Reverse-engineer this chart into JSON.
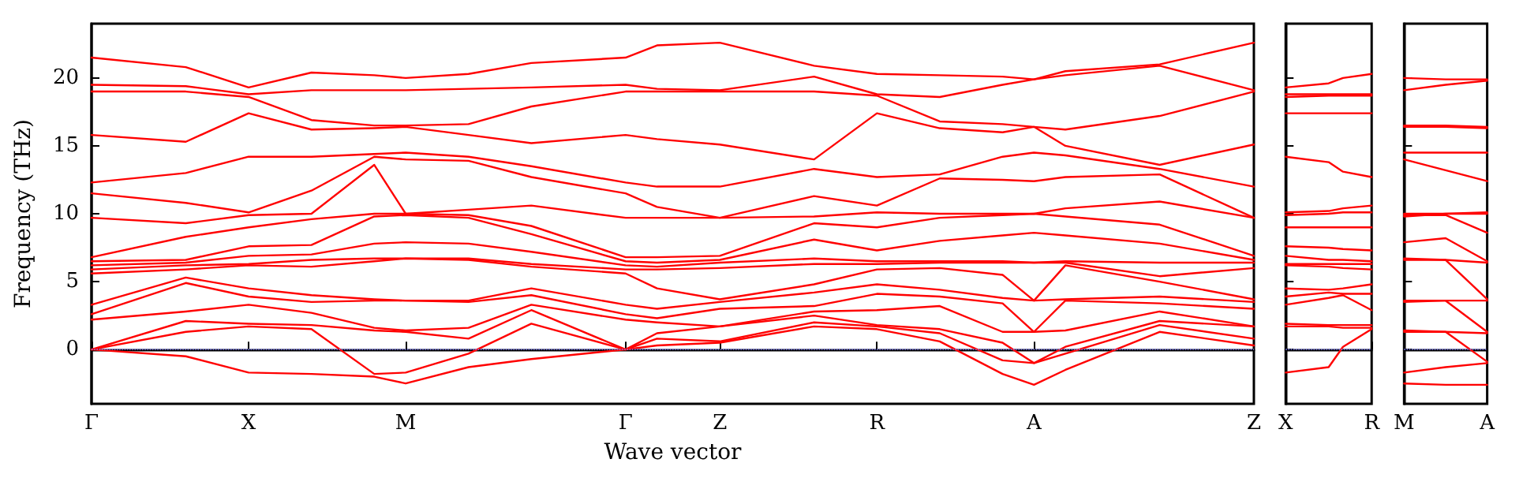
{
  "chart_data": [
    {
      "type": "line",
      "xlabel": "Wave vector",
      "ylabel": "Frequency (THz)",
      "marker": "none",
      "line_style": "solid",
      "categories": [
        "Γ",
        null,
        null,
        null,
        null,
        "X",
        null,
        null,
        null,
        null,
        "M",
        null,
        null,
        null,
        null,
        null,
        null,
        "Γ",
        null,
        null,
        "Z",
        null,
        null,
        null,
        null,
        "R",
        null,
        null,
        null,
        null,
        "A",
        null,
        null,
        null,
        null,
        null,
        null,
        "Z"
      ],
      "ylim": [
        -4,
        24
      ],
      "yticks": [
        0,
        5,
        10,
        15,
        20
      ],
      "ref_lines": [
        {
          "axis": "y",
          "value": 0,
          "color": "#8080ff",
          "line_style": "dotted"
        }
      ],
      "series": [
        {
          "color": "#ff0000",
          "values": [
            0,
            null,
            null,
            -0.5,
            null,
            -1.7,
            null,
            -1.8,
            null,
            -2.0,
            -2.5,
            null,
            -1.3,
            null,
            -0.7,
            null,
            null,
            0,
            0.3,
            null,
            0.5,
            null,
            null,
            1.7,
            null,
            1.5,
            null,
            0.6,
            null,
            -1.8,
            -2.6,
            -1.5,
            null,
            null,
            1.3,
            null,
            null,
            0.3
          ]
        },
        {
          "color": "#ff0000",
          "values": [
            0,
            null,
            null,
            1.3,
            null,
            1.7,
            null,
            1.5,
            null,
            -1.8,
            -1.7,
            null,
            -0.3,
            null,
            1.9,
            null,
            null,
            0,
            0.8,
            null,
            0.6,
            null,
            null,
            2.0,
            null,
            1.7,
            null,
            1.2,
            null,
            -0.8,
            -1.0,
            -0.3,
            null,
            null,
            1.8,
            null,
            null,
            0.8
          ]
        },
        {
          "color": "#ff0000",
          "values": [
            0,
            null,
            null,
            2.1,
            null,
            1.9,
            null,
            1.8,
            null,
            1.4,
            1.3,
            null,
            0.8,
            null,
            2.9,
            null,
            null,
            0,
            1.2,
            null,
            1.7,
            null,
            null,
            2.5,
            null,
            1.8,
            null,
            1.5,
            null,
            0.5,
            -1.0,
            0.2,
            null,
            null,
            2.1,
            null,
            null,
            1.7
          ]
        },
        {
          "color": "#ff0000",
          "values": [
            2.2,
            null,
            null,
            2.8,
            null,
            3.3,
            null,
            2.7,
            null,
            1.6,
            1.4,
            null,
            1.6,
            null,
            3.3,
            null,
            null,
            2.2,
            2.0,
            null,
            1.7,
            null,
            null,
            2.8,
            null,
            2.9,
            null,
            3.2,
            null,
            1.3,
            1.3,
            1.4,
            null,
            null,
            2.8,
            null,
            null,
            1.7
          ]
        },
        {
          "color": "#ff0000",
          "values": [
            2.6,
            null,
            null,
            4.9,
            null,
            3.9,
            null,
            3.5,
            null,
            3.6,
            3.6,
            null,
            3.5,
            null,
            4.0,
            null,
            null,
            2.6,
            2.3,
            null,
            3.0,
            null,
            null,
            3.2,
            null,
            4.1,
            null,
            3.9,
            null,
            3.4,
            1.3,
            3.6,
            null,
            null,
            3.4,
            null,
            null,
            3.0
          ]
        },
        {
          "color": "#ff0000",
          "values": [
            3.3,
            null,
            null,
            5.3,
            null,
            4.5,
            null,
            4.0,
            null,
            3.7,
            3.6,
            null,
            3.6,
            null,
            4.5,
            null,
            null,
            3.3,
            3.0,
            null,
            3.5,
            null,
            null,
            4.2,
            null,
            4.8,
            null,
            4.4,
            null,
            3.8,
            3.6,
            3.7,
            null,
            null,
            3.9,
            null,
            null,
            3.5
          ]
        },
        {
          "color": "#ff0000",
          "values": [
            5.6,
            null,
            null,
            5.9,
            null,
            6.2,
            null,
            6.1,
            null,
            6.5,
            6.7,
            null,
            6.6,
            null,
            6.1,
            null,
            null,
            5.6,
            4.5,
            null,
            3.7,
            null,
            null,
            4.8,
            null,
            5.9,
            null,
            6.0,
            null,
            5.5,
            3.6,
            6.2,
            null,
            null,
            5.0,
            null,
            null,
            3.7
          ]
        },
        {
          "color": "#ff0000",
          "values": [
            5.9,
            null,
            null,
            6.2,
            null,
            6.3,
            null,
            6.6,
            null,
            6.7,
            6.7,
            null,
            6.7,
            null,
            6.3,
            null,
            null,
            5.9,
            5.9,
            null,
            6.0,
            null,
            null,
            6.3,
            null,
            6.3,
            null,
            6.4,
            null,
            6.4,
            6.4,
            6.4,
            null,
            null,
            5.4,
            null,
            null,
            6.0
          ]
        },
        {
          "color": "#ff0000",
          "values": [
            6.2,
            null,
            null,
            6.4,
            null,
            6.9,
            null,
            7.0,
            null,
            7.8,
            7.9,
            null,
            7.8,
            null,
            7.2,
            null,
            null,
            6.2,
            6.1,
            null,
            6.4,
            null,
            null,
            6.7,
            null,
            6.5,
            null,
            6.5,
            null,
            6.5,
            6.4,
            6.5,
            null,
            null,
            6.4,
            null,
            null,
            6.4
          ]
        },
        {
          "color": "#ff0000",
          "values": [
            6.5,
            null,
            null,
            6.6,
            null,
            7.6,
            null,
            7.7,
            null,
            9.8,
            9.9,
            null,
            9.7,
            null,
            8.5,
            null,
            null,
            6.5,
            6.4,
            null,
            6.6,
            null,
            null,
            8.1,
            null,
            7.3,
            null,
            8.0,
            null,
            8.4,
            8.6,
            8.4,
            null,
            null,
            7.8,
            null,
            null,
            6.6
          ]
        },
        {
          "color": "#ff0000",
          "values": [
            6.8,
            null,
            null,
            8.3,
            null,
            9.0,
            null,
            9.6,
            null,
            10.0,
            10.0,
            null,
            9.9,
            null,
            9.1,
            null,
            null,
            6.8,
            6.8,
            null,
            6.9,
            null,
            null,
            9.3,
            null,
            9.0,
            null,
            9.7,
            null,
            9.9,
            10.0,
            9.8,
            null,
            null,
            9.2,
            null,
            null,
            6.9
          ]
        },
        {
          "color": "#ff0000",
          "values": [
            9.7,
            null,
            null,
            9.3,
            null,
            9.9,
            null,
            10.0,
            null,
            13.6,
            10.0,
            null,
            10.3,
            null,
            10.6,
            null,
            null,
            9.7,
            9.7,
            null,
            9.7,
            null,
            null,
            9.8,
            null,
            10.1,
            null,
            10.0,
            null,
            10.0,
            10.0,
            10.4,
            null,
            null,
            10.9,
            null,
            null,
            9.7
          ]
        },
        {
          "color": "#ff0000",
          "values": [
            11.5,
            null,
            null,
            10.8,
            null,
            10.1,
            null,
            11.7,
            null,
            14.2,
            14.0,
            null,
            13.9,
            null,
            12.7,
            null,
            null,
            11.5,
            10.5,
            null,
            9.7,
            null,
            null,
            11.3,
            null,
            10.6,
            null,
            12.6,
            null,
            12.5,
            12.4,
            12.7,
            null,
            null,
            12.9,
            null,
            null,
            9.7
          ]
        },
        {
          "color": "#ff0000",
          "values": [
            12.3,
            null,
            null,
            13.0,
            null,
            14.2,
            null,
            14.2,
            null,
            14.4,
            14.5,
            null,
            14.2,
            null,
            13.5,
            null,
            null,
            12.3,
            12.0,
            null,
            12.0,
            null,
            null,
            13.3,
            null,
            12.7,
            null,
            12.9,
            null,
            14.2,
            14.5,
            14.3,
            null,
            null,
            13.3,
            null,
            null,
            12.0
          ]
        },
        {
          "color": "#ff0000",
          "values": [
            15.8,
            null,
            null,
            15.3,
            null,
            17.4,
            null,
            16.2,
            null,
            16.3,
            16.4,
            null,
            15.8,
            null,
            15.2,
            null,
            null,
            15.8,
            15.5,
            null,
            15.1,
            null,
            null,
            14.0,
            null,
            17.4,
            null,
            16.3,
            null,
            16.0,
            16.4,
            15.0,
            null,
            null,
            13.6,
            null,
            null,
            15.1
          ]
        },
        {
          "color": "#ff0000",
          "values": [
            19.0,
            null,
            null,
            19.0,
            null,
            18.6,
            null,
            16.9,
            null,
            16.5,
            16.5,
            null,
            16.6,
            null,
            17.9,
            null,
            null,
            19.0,
            19.0,
            null,
            19.0,
            null,
            null,
            19.0,
            null,
            18.7,
            null,
            16.8,
            null,
            16.6,
            16.4,
            16.2,
            null,
            null,
            17.2,
            null,
            null,
            19.0
          ]
        },
        {
          "color": "#ff0000",
          "values": [
            19.5,
            null,
            null,
            19.4,
            null,
            18.8,
            null,
            19.1,
            null,
            19.1,
            19.1,
            null,
            19.2,
            null,
            19.3,
            null,
            null,
            19.5,
            19.2,
            null,
            19.1,
            null,
            null,
            20.1,
            null,
            18.8,
            null,
            18.6,
            null,
            19.5,
            19.9,
            20.2,
            null,
            null,
            20.9,
            null,
            null,
            19.1
          ]
        },
        {
          "color": "#ff0000",
          "values": [
            21.5,
            null,
            null,
            20.8,
            null,
            19.3,
            null,
            20.4,
            null,
            20.2,
            20.0,
            null,
            20.3,
            null,
            21.1,
            null,
            null,
            21.5,
            22.4,
            null,
            22.6,
            null,
            null,
            20.9,
            null,
            20.3,
            null,
            20.2,
            null,
            20.1,
            19.9,
            20.5,
            null,
            null,
            21.0,
            null,
            null,
            22.6
          ]
        }
      ]
    },
    {
      "type": "line",
      "marker": "none",
      "line_style": "solid",
      "tick_labels": "x",
      "categories": [
        "X",
        null,
        null,
        null,
        null,
        null,
        "R"
      ],
      "ylim": [
        -4,
        24
      ],
      "yticks": [
        0,
        5,
        10,
        15,
        20
      ],
      "ref_lines": [
        {
          "axis": "y",
          "value": 0,
          "color": "#8080ff",
          "line_style": "dotted"
        }
      ],
      "series": [
        {
          "color": "#ff0000",
          "values": [
            -1.7,
            null,
            null,
            -1.3,
            0.2,
            null,
            1.5
          ]
        },
        {
          "color": "#ff0000",
          "values": [
            1.7,
            null,
            null,
            1.7,
            1.6,
            null,
            1.6
          ]
        },
        {
          "color": "#ff0000",
          "values": [
            1.9,
            null,
            null,
            1.8,
            1.8,
            null,
            1.8
          ]
        },
        {
          "color": "#ff0000",
          "values": [
            3.3,
            null,
            null,
            3.8,
            4.0,
            null,
            2.9
          ]
        },
        {
          "color": "#ff0000",
          "values": [
            3.9,
            null,
            null,
            4.2,
            4.1,
            null,
            4.1
          ]
        },
        {
          "color": "#ff0000",
          "values": [
            4.5,
            null,
            null,
            4.4,
            4.5,
            null,
            4.8
          ]
        },
        {
          "color": "#ff0000",
          "values": [
            6.2,
            null,
            null,
            6.1,
            6.0,
            null,
            5.9
          ]
        },
        {
          "color": "#ff0000",
          "values": [
            6.3,
            null,
            null,
            6.3,
            6.3,
            null,
            6.3
          ]
        },
        {
          "color": "#ff0000",
          "values": [
            6.9,
            null,
            null,
            6.6,
            6.6,
            null,
            6.5
          ]
        },
        {
          "color": "#ff0000",
          "values": [
            7.6,
            null,
            null,
            7.5,
            7.4,
            null,
            7.3
          ]
        },
        {
          "color": "#ff0000",
          "values": [
            9.0,
            null,
            null,
            9.0,
            9.0,
            null,
            9.0
          ]
        },
        {
          "color": "#ff0000",
          "values": [
            9.9,
            null,
            null,
            10.0,
            10.1,
            null,
            10.1
          ]
        },
        {
          "color": "#ff0000",
          "values": [
            10.1,
            null,
            null,
            10.2,
            10.4,
            null,
            10.6
          ]
        },
        {
          "color": "#ff0000",
          "values": [
            14.2,
            null,
            null,
            13.8,
            13.1,
            null,
            12.7
          ]
        },
        {
          "color": "#ff0000",
          "values": [
            17.4,
            null,
            null,
            17.4,
            17.4,
            null,
            17.4
          ]
        },
        {
          "color": "#ff0000",
          "values": [
            18.6,
            null,
            null,
            18.7,
            18.7,
            null,
            18.7
          ]
        },
        {
          "color": "#ff0000",
          "values": [
            18.8,
            null,
            null,
            18.8,
            18.8,
            null,
            18.8
          ]
        },
        {
          "color": "#ff0000",
          "values": [
            19.3,
            null,
            null,
            19.6,
            20.0,
            null,
            20.3
          ]
        }
      ]
    },
    {
      "type": "line",
      "marker": "none",
      "line_style": "solid",
      "tick_labels": "x",
      "categories": [
        "M",
        null,
        "A"
      ],
      "ylim": [
        -4,
        24
      ],
      "yticks": [
        0,
        5,
        10,
        15,
        20
      ],
      "ref_lines": [
        {
          "axis": "y",
          "value": 0,
          "color": "#8080ff",
          "line_style": "dotted"
        }
      ],
      "series": [
        {
          "color": "#ff0000",
          "values": [
            -2.5,
            -2.6,
            -2.6
          ]
        },
        {
          "color": "#ff0000",
          "values": [
            -1.7,
            -1.3,
            -1.0
          ]
        },
        {
          "color": "#ff0000",
          "values": [
            1.3,
            1.3,
            -0.9
          ]
        },
        {
          "color": "#ff0000",
          "values": [
            1.4,
            1.3,
            1.2
          ]
        },
        {
          "color": "#ff0000",
          "values": [
            3.6,
            3.6,
            1.3
          ]
        },
        {
          "color": "#ff0000",
          "values": [
            3.5,
            3.6,
            3.6
          ]
        },
        {
          "color": "#ff0000",
          "values": [
            6.7,
            6.6,
            3.7
          ]
        },
        {
          "color": "#ff0000",
          "values": [
            6.6,
            6.6,
            6.4
          ]
        },
        {
          "color": "#ff0000",
          "values": [
            7.9,
            8.2,
            6.5
          ]
        },
        {
          "color": "#ff0000",
          "values": [
            9.9,
            9.9,
            8.6
          ]
        },
        {
          "color": "#ff0000",
          "values": [
            9.8,
            10.0,
            10.0
          ]
        },
        {
          "color": "#ff0000",
          "values": [
            10.0,
            10.0,
            10.1
          ]
        },
        {
          "color": "#ff0000",
          "values": [
            14.0,
            13.2,
            12.4
          ]
        },
        {
          "color": "#ff0000",
          "values": [
            14.5,
            14.5,
            14.5
          ]
        },
        {
          "color": "#ff0000",
          "values": [
            16.4,
            16.4,
            16.3
          ]
        },
        {
          "color": "#ff0000",
          "values": [
            16.5,
            16.5,
            16.4
          ]
        },
        {
          "color": "#ff0000",
          "values": [
            19.1,
            19.5,
            19.8
          ]
        },
        {
          "color": "#ff0000",
          "values": [
            20.0,
            19.9,
            19.9
          ]
        }
      ]
    }
  ]
}
